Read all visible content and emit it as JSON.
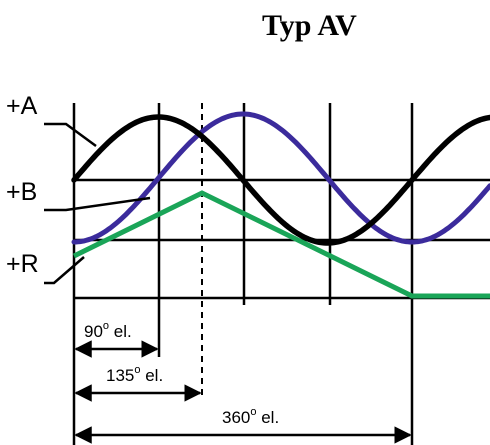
{
  "title": "Typ AV",
  "signals": {
    "a": {
      "label": "+A",
      "color": "#000000"
    },
    "b": {
      "label": "+B",
      "color": "#3b2b9c"
    },
    "r": {
      "label": "+R",
      "color": "#1aa558"
    }
  },
  "dimensions": [
    {
      "value": "90",
      "sup": "o",
      "unit": " el."
    },
    {
      "value": "135",
      "sup": "o",
      "unit": " el."
    },
    {
      "value": "360",
      "sup": "o",
      "unit": " el."
    }
  ]
}
